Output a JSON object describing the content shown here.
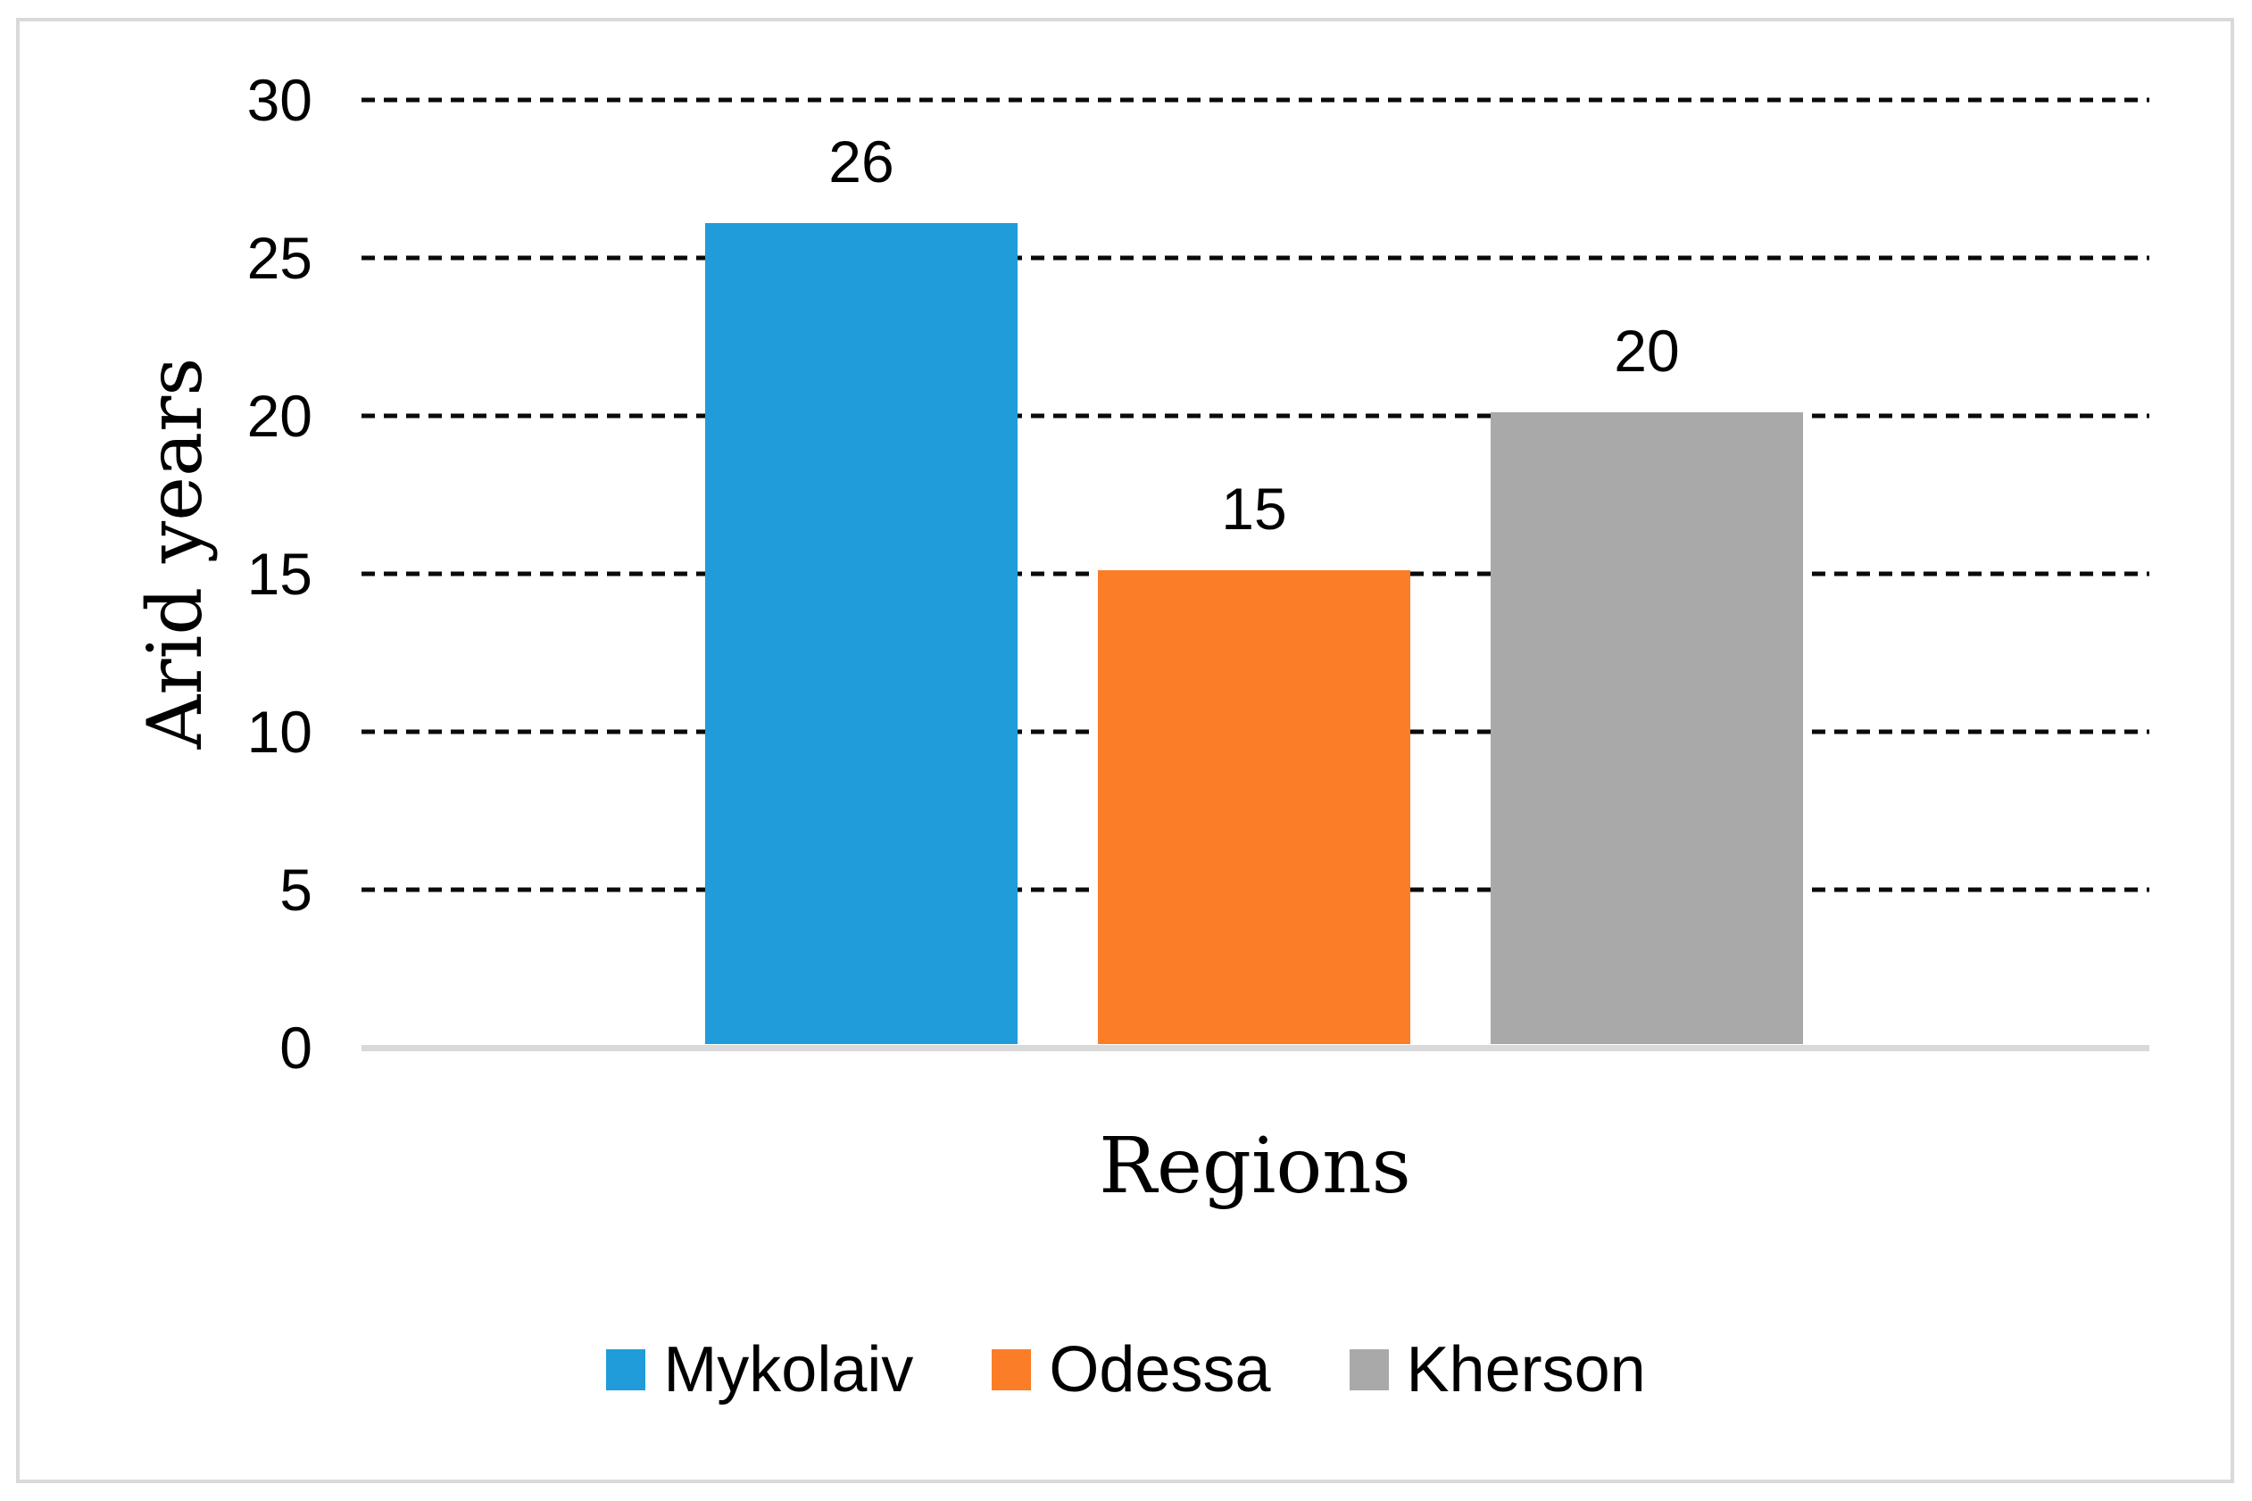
{
  "chart_data": {
    "type": "bar",
    "categories": [
      "Mykolaiv",
      "Odessa",
      "Kherson"
    ],
    "values": [
      26,
      15,
      20
    ],
    "data_labels": [
      "26",
      "15",
      "20"
    ],
    "series_colors": [
      "#1F9CD9",
      "#FB7D27",
      "#A9A9A9"
    ],
    "title": "",
    "xlabel": "Regions",
    "ylabel": "Arid years",
    "ylim": [
      0,
      30
    ],
    "ytick_step": 5,
    "yticks": [
      "30",
      "25",
      "20",
      "15",
      "10",
      "5",
      "0"
    ],
    "grid": "horizontal dashed black lines",
    "gridline_color": "#0a0a0a",
    "axis_line_color": "#d9d9d9",
    "figure_border_color": "#d9d9d9",
    "legend_position": "bottom",
    "legend": [
      "Mykolaiv",
      "Odessa",
      "Kherson"
    ]
  }
}
